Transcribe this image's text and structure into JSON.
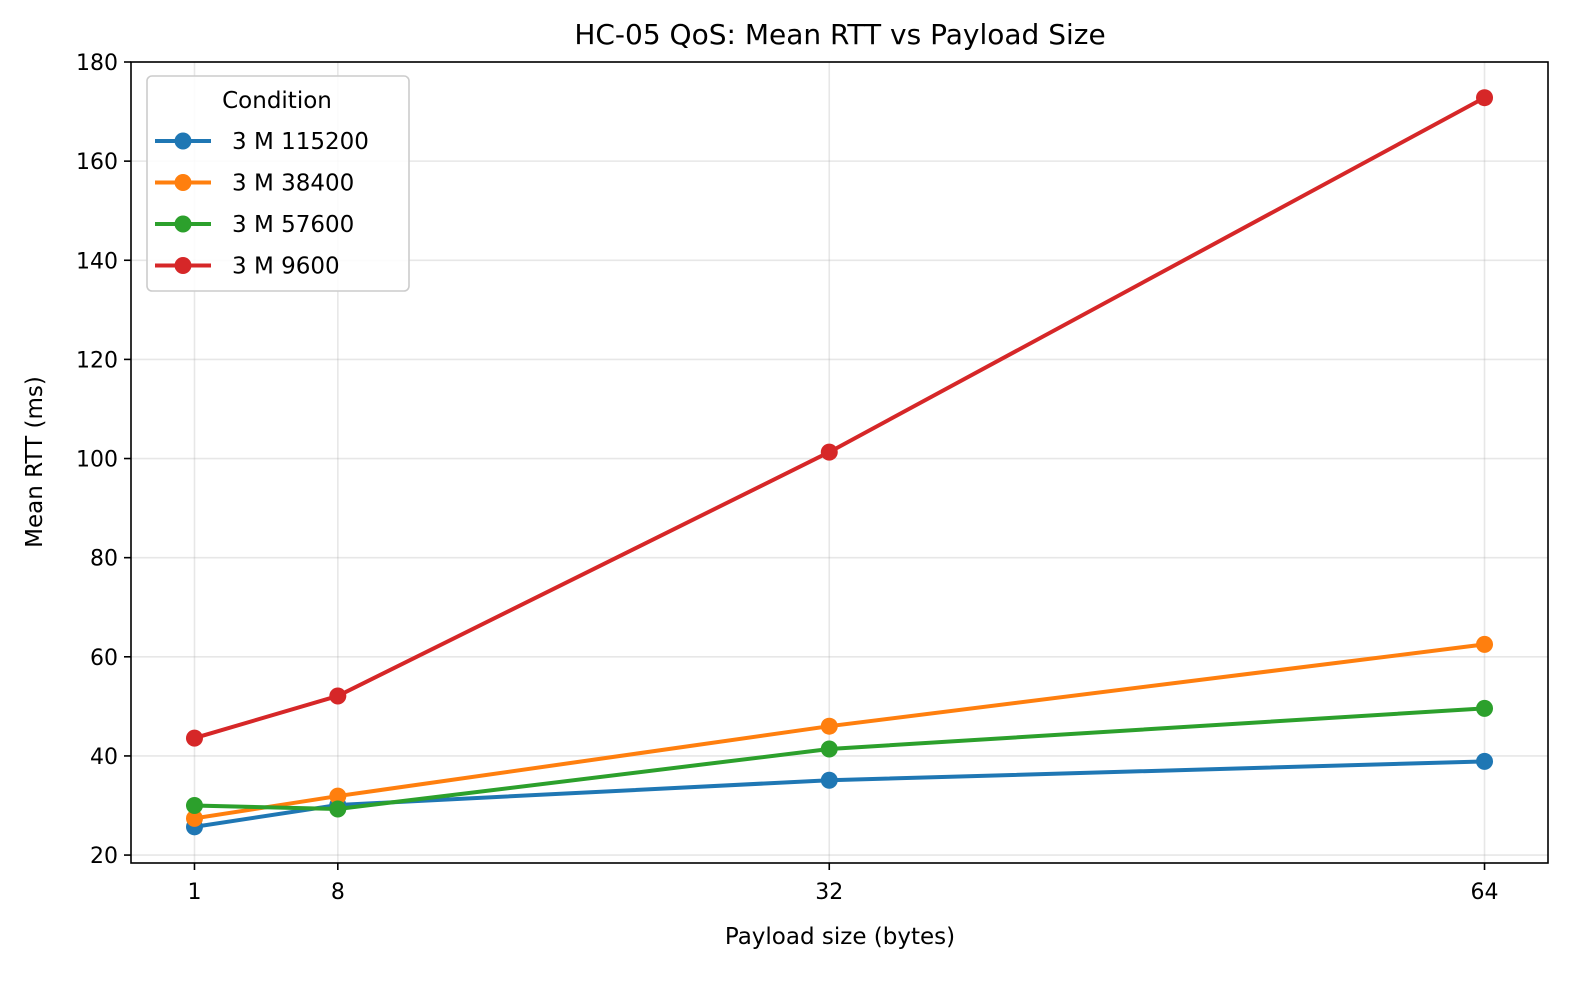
{
  "chart_data": {
    "type": "line",
    "title": "HC-05 QoS: Mean RTT vs Payload Size",
    "xlabel": "Payload size (bytes)",
    "ylabel": "Mean RTT (ms)",
    "x": [
      1,
      8,
      32,
      64
    ],
    "xticks": [
      1,
      8,
      32,
      64
    ],
    "xlim": [
      -2.1,
      67.1
    ],
    "yticks": [
      20,
      40,
      60,
      80,
      100,
      120,
      140,
      160,
      180
    ],
    "ylim": [
      18.4,
      180
    ],
    "grid": true,
    "legend": {
      "title": "Condition",
      "placement": "top-left"
    },
    "series": [
      {
        "name": "3 M 115200",
        "color": "#1f77b4",
        "values": [
          25.7,
          30.1,
          35.1,
          38.9
        ]
      },
      {
        "name": "3 M 38400",
        "color": "#ff7f0e",
        "values": [
          27.4,
          31.9,
          46.0,
          62.5
        ]
      },
      {
        "name": "3 M 57600",
        "color": "#2ca02c",
        "values": [
          30.0,
          29.3,
          41.4,
          49.6
        ]
      },
      {
        "name": "3 M 9600",
        "color": "#d62728",
        "values": [
          43.6,
          52.1,
          101.3,
          172.8
        ]
      }
    ]
  }
}
